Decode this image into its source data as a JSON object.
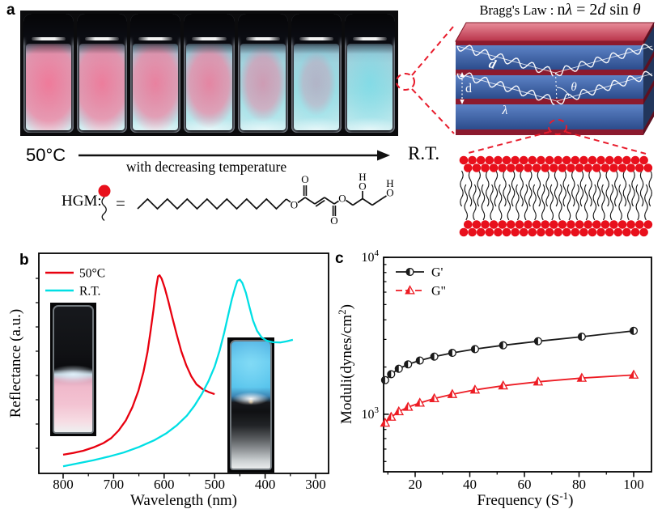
{
  "panels": {
    "a": {
      "label": "a",
      "temp_left": "50°C",
      "arrow_caption": "with decreasing temperature",
      "temp_right": "R.T.",
      "vials": [
        {
          "name": "vial-1-50C",
          "pink_opacity": 0.95,
          "pink_w": 120,
          "pink_h": 90,
          "cyan_opacity": 0.1
        },
        {
          "name": "vial-2",
          "pink_opacity": 0.92,
          "pink_w": 112,
          "pink_h": 86,
          "cyan_opacity": 0.14
        },
        {
          "name": "vial-3",
          "pink_opacity": 0.88,
          "pink_w": 100,
          "pink_h": 80,
          "cyan_opacity": 0.2
        },
        {
          "name": "vial-4",
          "pink_opacity": 0.84,
          "pink_w": 88,
          "pink_h": 72,
          "cyan_opacity": 0.28
        },
        {
          "name": "vial-5",
          "pink_opacity": 0.62,
          "pink_w": 74,
          "pink_h": 62,
          "cyan_opacity": 0.4
        },
        {
          "name": "vial-6",
          "pink_opacity": 0.38,
          "pink_w": 60,
          "pink_h": 52,
          "cyan_opacity": 0.52
        },
        {
          "name": "vial-7-RT",
          "pink_opacity": 0.0,
          "pink_w": 0,
          "pink_h": 0,
          "cyan_opacity": 0.62
        }
      ],
      "hgm": {
        "label": "HGM:",
        "equals": "=",
        "atom_o": "O",
        "atom_h": "H"
      }
    },
    "bragg": {
      "title_parts": [
        {
          "text": "Bragg's Law : ",
          "italic": false,
          "big": false
        },
        {
          "text": "n",
          "italic": false,
          "big": true
        },
        {
          "text": "λ",
          "italic": true,
          "big": true
        },
        {
          "text": " = 2",
          "italic": false,
          "big": true
        },
        {
          "text": "d",
          "italic": true,
          "big": true
        },
        {
          "text": " sin ",
          "italic": false,
          "big": true
        },
        {
          "text": "θ",
          "italic": true,
          "big": true
        }
      ],
      "diagram_labels": {
        "d_slant": "d",
        "d_left": "d",
        "theta": "θ",
        "lambda": "λ"
      },
      "colors": {
        "layer_blue": "#3f67ad",
        "layer_blue_dark": "#2c4c8c",
        "stripe_red": "#8c1a2e",
        "top_face_light": "#e88d9a",
        "top_face_dark": "#b93349",
        "side_face": "#22365c",
        "accent_dashed": "#e81c2c",
        "bilayer_head": "#e8101c"
      }
    },
    "b": {
      "label": "b"
    },
    "c": {
      "label": "c"
    }
  },
  "chart_data": [
    {
      "id": "panel-b-reflectance",
      "type": "line",
      "title": "",
      "xlabel_parts": [
        {
          "t": "Wavelength (nm)"
        }
      ],
      "ylabel_parts": [
        {
          "t": "Reflectance (a.u.)"
        }
      ],
      "xlim": [
        848,
        276
      ],
      "ylim": [
        0,
        1
      ],
      "x_reversed": true,
      "grid": false,
      "legend_position": "top-left",
      "x_ticks": [
        800,
        700,
        600,
        500,
        400,
        300
      ],
      "x_minor_ticks": [
        750,
        650,
        550,
        450,
        350
      ],
      "series": [
        {
          "name": "50°C",
          "color": "#e8000f",
          "points": [
            [
              800,
              0.085
            ],
            [
              780,
              0.093
            ],
            [
              760,
              0.103
            ],
            [
              740,
              0.118
            ],
            [
              720,
              0.138
            ],
            [
              705,
              0.16
            ],
            [
              690,
              0.195
            ],
            [
              676,
              0.24
            ],
            [
              663,
              0.3
            ],
            [
              651,
              0.375
            ],
            [
              641,
              0.46
            ],
            [
              633,
              0.55
            ],
            [
              627,
              0.645
            ],
            [
              621,
              0.745
            ],
            [
              616,
              0.84
            ],
            [
              612,
              0.895
            ],
            [
              609,
              0.9
            ],
            [
              605,
              0.885
            ],
            [
              599,
              0.845
            ],
            [
              592,
              0.785
            ],
            [
              584,
              0.71
            ],
            [
              575,
              0.63
            ],
            [
              566,
              0.555
            ],
            [
              556,
              0.49
            ],
            [
              546,
              0.44
            ],
            [
              536,
              0.405
            ],
            [
              524,
              0.383
            ],
            [
              512,
              0.37
            ],
            [
              500,
              0.36
            ]
          ]
        },
        {
          "name": "R.T.",
          "color": "#00dfe4",
          "points": [
            [
              800,
              0.032
            ],
            [
              770,
              0.046
            ],
            [
              740,
              0.06
            ],
            [
              710,
              0.076
            ],
            [
              680,
              0.095
            ],
            [
              650,
              0.12
            ],
            [
              620,
              0.15
            ],
            [
              595,
              0.183
            ],
            [
              575,
              0.218
            ],
            [
              555,
              0.262
            ],
            [
              540,
              0.307
            ],
            [
              525,
              0.362
            ],
            [
              512,
              0.42
            ],
            [
              500,
              0.485
            ],
            [
              490,
              0.558
            ],
            [
              481,
              0.64
            ],
            [
              473,
              0.72
            ],
            [
              466,
              0.79
            ],
            [
              460,
              0.84
            ],
            [
              455,
              0.875
            ],
            [
              450,
              0.88
            ],
            [
              445,
              0.865
            ],
            [
              438,
              0.82
            ],
            [
              431,
              0.755
            ],
            [
              424,
              0.695
            ],
            [
              416,
              0.648
            ],
            [
              407,
              0.618
            ],
            [
              397,
              0.603
            ],
            [
              385,
              0.596
            ],
            [
              370,
              0.595
            ],
            [
              357,
              0.6
            ],
            [
              345,
              0.607
            ]
          ]
        }
      ]
    },
    {
      "id": "panel-c-moduli",
      "type": "line",
      "title": "",
      "xlabel_parts": [
        {
          "t": "Frequency (S"
        },
        {
          "t": "-1",
          "sup": true
        },
        {
          "t": ")"
        }
      ],
      "ylabel_parts": [
        {
          "t": "Moduli(dynes/cm"
        },
        {
          "t": "2",
          "sup": true
        },
        {
          "t": ")"
        }
      ],
      "xlim": [
        8.7,
        106
      ],
      "ylim": [
        430,
        10000
      ],
      "y_scale": "log",
      "grid": false,
      "legend_position": "top-left",
      "x_ticks": [
        20,
        40,
        60,
        80,
        100
      ],
      "x_minor_ticks": [
        10,
        30,
        50,
        70,
        90
      ],
      "y_tick_labels": [
        {
          "value": 1000,
          "base": "10",
          "exp": "3"
        },
        {
          "value": 10000,
          "base": "10",
          "exp": "4"
        }
      ],
      "y_minor_ticks": [
        500,
        600,
        700,
        800,
        900,
        2000,
        3000,
        4000,
        5000,
        6000,
        7000,
        8000,
        9000
      ],
      "x": [
        9,
        11.2,
        14,
        17.4,
        21.7,
        27,
        33.6,
        41.9,
        52.2,
        65,
        81,
        100
      ],
      "series": [
        {
          "name": "G'",
          "color": "#1a1a1a",
          "marker": "half-circle",
          "values": [
            1650,
            1800,
            1950,
            2080,
            2200,
            2330,
            2460,
            2600,
            2750,
            2920,
            3120,
            3400
          ]
        },
        {
          "name": "G\"",
          "color": "#ed1c24",
          "marker": "half-triangle",
          "values": [
            880,
            960,
            1040,
            1110,
            1180,
            1260,
            1340,
            1430,
            1520,
            1610,
            1700,
            1780
          ]
        }
      ]
    }
  ]
}
